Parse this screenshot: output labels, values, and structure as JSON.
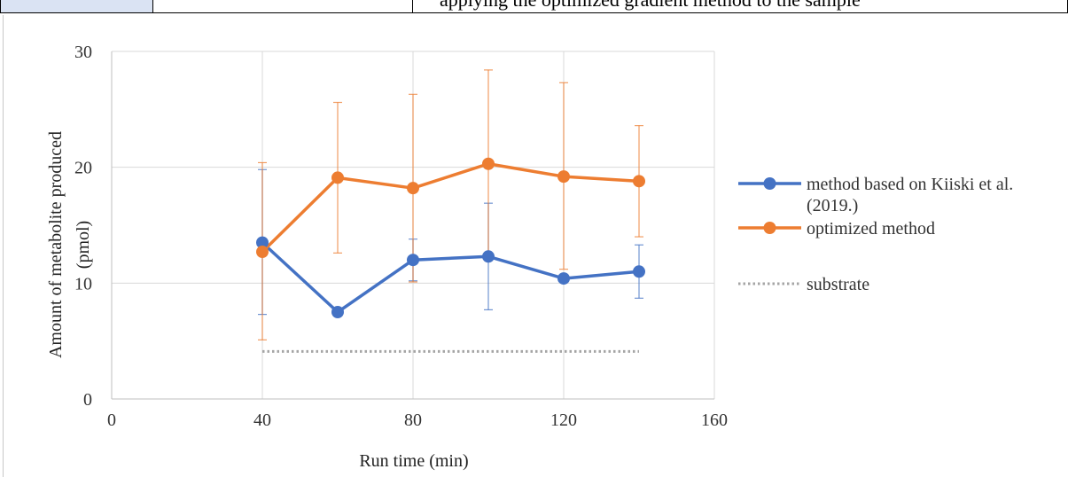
{
  "table_fragment": {
    "cell_c_text": "applying the optimized gradient method to the sample"
  },
  "chart_data": {
    "type": "line",
    "xlabel": "Run time (min)",
    "ylabel_line1": "Amount of metabolite produced",
    "ylabel_line2": "(pmol)",
    "xlim": [
      0,
      160
    ],
    "ylim": [
      0,
      30
    ],
    "xticks": [
      0,
      40,
      80,
      120,
      160
    ],
    "yticks": [
      0,
      10,
      20,
      30
    ],
    "grid": true,
    "legend_position": "right",
    "series": [
      {
        "name": "method based on Kiiski et al. (2019.)",
        "legend_lines": [
          "method based on Kiiski et al.",
          "(2019.)"
        ],
        "color": "#4472c4",
        "style": "line-marker",
        "x": [
          40,
          60,
          80,
          100,
          120,
          140
        ],
        "y": [
          13.5,
          7.5,
          12.0,
          12.3,
          10.4,
          11.0
        ],
        "err_low": [
          7.3,
          null,
          10.2,
          7.7,
          null,
          8.7
        ],
        "err_high": [
          19.8,
          null,
          13.8,
          16.9,
          null,
          13.3
        ]
      },
      {
        "name": "optimized method",
        "legend_lines": [
          "optimized method"
        ],
        "color": "#ed7d31",
        "style": "line-marker",
        "x": [
          40,
          60,
          80,
          100,
          120,
          140
        ],
        "y": [
          12.7,
          19.1,
          18.2,
          20.3,
          19.2,
          18.8
        ],
        "err_low": [
          5.1,
          12.6,
          10.1,
          12.2,
          11.2,
          14.0
        ],
        "err_high": [
          20.4,
          25.6,
          26.3,
          28.4,
          27.3,
          23.6
        ]
      },
      {
        "name": "substrate",
        "legend_lines": [
          "substrate"
        ],
        "color": "#a5a5a5",
        "style": "dotted",
        "x": [
          40,
          140
        ],
        "y": [
          4.1,
          4.1
        ]
      }
    ]
  }
}
